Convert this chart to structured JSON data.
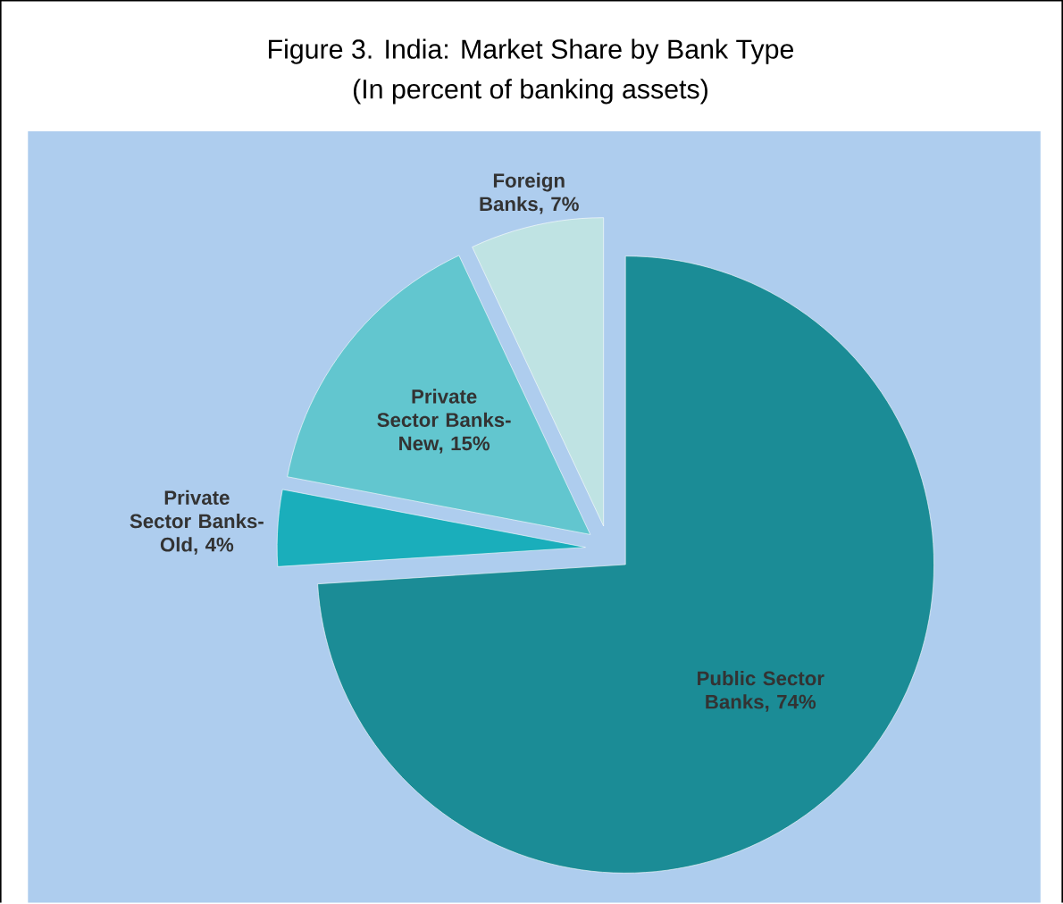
{
  "chart_data": {
    "type": "pie",
    "title": "Figure 3. India: Market Share by Bank Type",
    "subtitle": "(In percent of banking assets)",
    "categories": [
      "Public Sector Banks, 74%",
      "Private Sector Banks-Old, 4%",
      "Private Sector Banks-New, 15%",
      "Foreign Banks, 7%"
    ],
    "values": [
      74,
      4,
      15,
      7
    ],
    "colors": [
      "#1b8c96",
      "#1aaebb",
      "#62c6cf",
      "#bfe3e3"
    ]
  }
}
